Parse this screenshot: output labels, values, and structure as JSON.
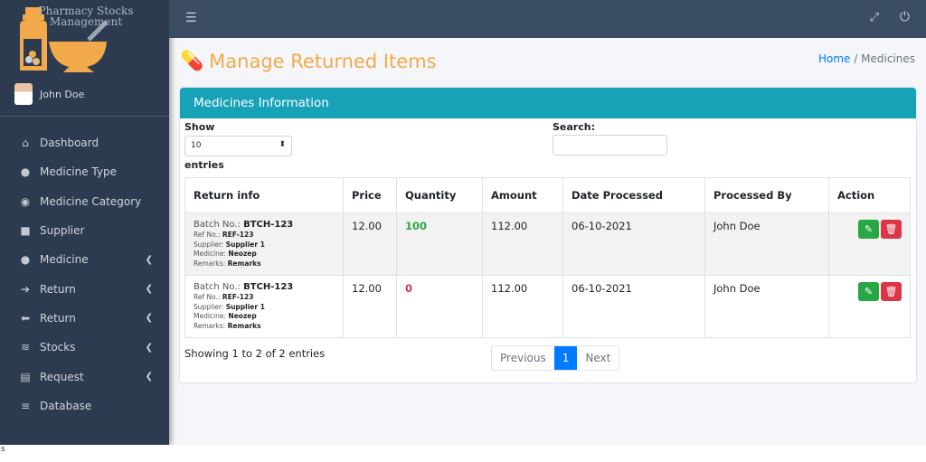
{
  "app": {
    "logo_text": "Pharmacy Stocks Management",
    "user": "John Doe"
  },
  "sidebar": {
    "items": [
      {
        "label": "Dashboard",
        "icon": "home-icon",
        "chev": false
      },
      {
        "label": "Medicine Type",
        "icon": "pills-icon",
        "chev": false
      },
      {
        "label": "Medicine Category",
        "icon": "capsules-icon",
        "chev": false
      },
      {
        "label": "Supplier",
        "icon": "truck-icon",
        "chev": false
      },
      {
        "label": "Medicine",
        "icon": "pills-icon",
        "chev": true
      },
      {
        "label": "Return",
        "icon": "arrow-right-circle-icon",
        "chev": true
      },
      {
        "label": "Return",
        "icon": "arrow-left-circle-icon",
        "chev": true
      },
      {
        "label": "Stocks",
        "icon": "layers-icon",
        "chev": true
      },
      {
        "label": "Request",
        "icon": "file-icon",
        "chev": true
      },
      {
        "label": "Database",
        "icon": "database-icon",
        "chev": false
      }
    ]
  },
  "page": {
    "title": "Manage Returned Items",
    "breadcrumb": {
      "home": "Home",
      "sep": "/",
      "current": "Medicines"
    }
  },
  "card": {
    "title": "Medicines Information",
    "show": "Show",
    "entries_value": "10",
    "entries": "entries",
    "search_label": "Search:",
    "search_value": ""
  },
  "table": {
    "headers": [
      "Return info",
      "Price",
      "Quantity",
      "Amount",
      "Date Processed",
      "Processed By",
      "Action"
    ],
    "rows": [
      {
        "batch": "BTCH-123",
        "ref": "REF-123",
        "supplier": "Supplier 1",
        "medicine": "Neozep",
        "remarks": "Remarks",
        "price": "12.00",
        "quantity": "100",
        "amount": "112.00",
        "date": "06-10-2021",
        "by": "John Doe"
      },
      {
        "batch": "BTCH-123",
        "ref": "REF-123",
        "supplier": "Supplier 1",
        "medicine": "Neozep",
        "remarks": "Remarks",
        "price": "12.00",
        "quantity": "0",
        "amount": "112.00",
        "date": "06-10-2021",
        "by": "John Doe"
      }
    ],
    "labels": {
      "batch": "Batch No.: ",
      "ref": "Ref No.: ",
      "supplier": "Supplier: ",
      "medicine": "Medicine: ",
      "remarks": "Remarks: "
    }
  },
  "footer": {
    "info": "Showing 1 to 2 of 2 entries",
    "prev": "Previous",
    "page": "1",
    "next": "Next"
  },
  "bottom": {
    "text": "s"
  },
  "colors": {
    "accent": "#f2a94a",
    "header": "#17a2b8",
    "edit": "#28a745",
    "delete": "#dc3545"
  }
}
